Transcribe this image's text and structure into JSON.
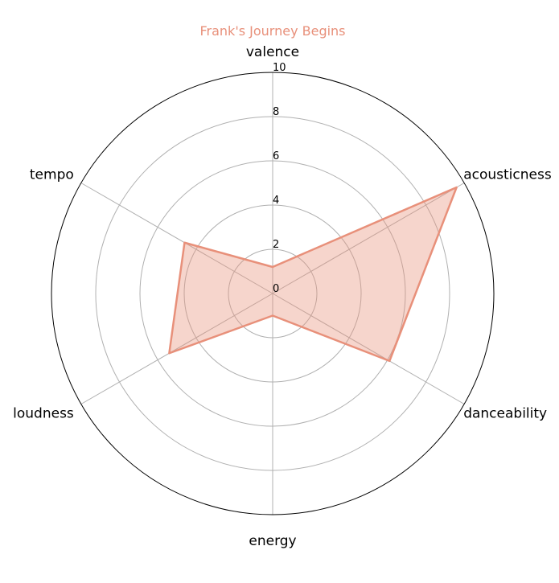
{
  "chart_data": {
    "type": "radar",
    "title": "Frank's Journey Begins",
    "axes": [
      "valence",
      "acousticness",
      "danceability",
      "energy",
      "loudness",
      "tempo"
    ],
    "series": [
      {
        "values": [
          1.2,
          9.6,
          6.1,
          1.0,
          5.4,
          4.6
        ]
      }
    ],
    "rlim": [
      0,
      10
    ],
    "r_ticks": [
      "0",
      "2",
      "4",
      "6",
      "8",
      "10"
    ],
    "grid": true,
    "colors": {
      "series": "#e8907a",
      "fill": "rgba(232,144,122,0.38)",
      "grid": "#b0b0b0",
      "outer": "#000000",
      "title": "#e8907a"
    }
  }
}
